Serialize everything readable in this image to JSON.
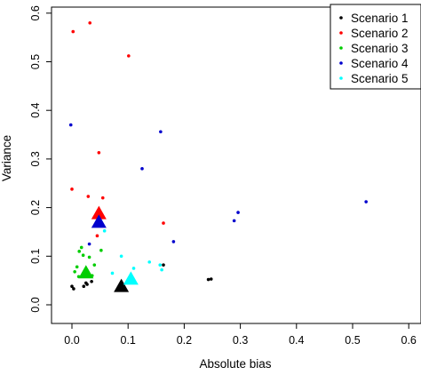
{
  "chart_data": {
    "type": "scatter",
    "title": "",
    "xlabel": "Absolute bias",
    "ylabel": "Variance",
    "xlim": [
      0,
      0.6
    ],
    "ylim": [
      0,
      0.6
    ],
    "xticks": [
      "0.0",
      "0.1",
      "0.2",
      "0.3",
      "0.4",
      "0.5",
      "0.6"
    ],
    "yticks": [
      "0.0",
      "0.1",
      "0.2",
      "0.3",
      "0.4",
      "0.5",
      "0.6"
    ],
    "grid": false,
    "legend_position": "top-right",
    "series": [
      {
        "name": "Scenario 1",
        "color": "#000000",
        "points": [
          [
            0.0,
            0.038
          ],
          [
            0.003,
            0.033
          ],
          [
            0.021,
            0.038
          ],
          [
            0.025,
            0.045
          ],
          [
            0.027,
            0.042
          ],
          [
            0.035,
            0.048
          ],
          [
            0.163,
            0.082
          ],
          [
            0.243,
            0.052
          ],
          [
            0.248,
            0.053
          ]
        ],
        "mean": [
          0.088,
          0.04
        ]
      },
      {
        "name": "Scenario 2",
        "color": "#ff0000",
        "points": [
          [
            0.002,
            0.562
          ],
          [
            0.032,
            0.58
          ],
          [
            0.101,
            0.512
          ],
          [
            0.048,
            0.313
          ],
          [
            0.0,
            0.238
          ],
          [
            0.029,
            0.223
          ],
          [
            0.055,
            0.22
          ],
          [
            0.163,
            0.168
          ],
          [
            0.045,
            0.142
          ]
        ],
        "mean": [
          0.048,
          0.19
        ]
      },
      {
        "name": "Scenario 3",
        "color": "#00cd00",
        "points": [
          [
            0.005,
            0.068
          ],
          [
            0.009,
            0.078
          ],
          [
            0.013,
            0.11
          ],
          [
            0.017,
            0.118
          ],
          [
            0.02,
            0.102
          ],
          [
            0.031,
            0.098
          ],
          [
            0.04,
            0.082
          ],
          [
            0.052,
            0.112
          ],
          [
            0.012,
            0.058
          ],
          [
            0.036,
            0.06
          ]
        ],
        "mean": [
          0.025,
          0.068
        ]
      },
      {
        "name": "Scenario 4",
        "color": "#0000cd",
        "points": [
          [
            -0.002,
            0.37
          ],
          [
            0.158,
            0.356
          ],
          [
            0.125,
            0.28
          ],
          [
            0.296,
            0.19
          ],
          [
            0.289,
            0.173
          ],
          [
            0.524,
            0.212
          ],
          [
            0.181,
            0.13
          ],
          [
            0.031,
            0.125
          ]
        ],
        "mean": [
          0.048,
          0.172
        ]
      },
      {
        "name": "Scenario 5",
        "color": "#00ffff",
        "points": [
          [
            0.058,
            0.152
          ],
          [
            0.138,
            0.088
          ],
          [
            0.157,
            0.082
          ],
          [
            0.16,
            0.072
          ],
          [
            0.088,
            0.1
          ],
          [
            0.11,
            0.075
          ],
          [
            0.072,
            0.065
          ]
        ],
        "mean": [
          0.105,
          0.055
        ]
      }
    ]
  }
}
